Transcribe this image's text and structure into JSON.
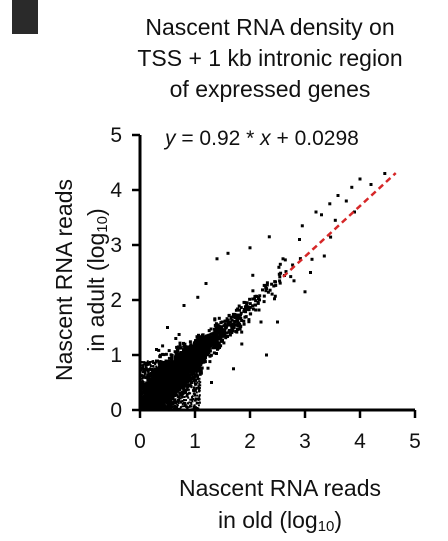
{
  "chart_data": {
    "type": "scatter",
    "title_lines": [
      "Nascent RNA density on",
      "TSS + 1 kb intronic region",
      "of expressed genes"
    ],
    "xlabel": {
      "line1": "Nascent RNA reads",
      "line2_prefix": "in old (log",
      "sub": "10",
      "suffix": ")"
    },
    "ylabel": {
      "line1": "Nascent RNA reads",
      "line2_prefix": "in adult (log",
      "sub": "10",
      "suffix": ")"
    },
    "xlim": [
      0,
      5
    ],
    "ylim": [
      0,
      5
    ],
    "x_ticks": [
      "0",
      "1",
      "2",
      "3",
      "4",
      "5"
    ],
    "y_ticks": [
      "0",
      "1",
      "2",
      "3",
      "4",
      "5"
    ],
    "fit": {
      "slope": 0.92,
      "intercept": 0.0298,
      "x_range": [
        2.6,
        4.65
      ],
      "color": "#d62728",
      "style": "dashed"
    },
    "fit_label": {
      "y": "y",
      "eq": " = 0.92 * ",
      "x": "x",
      "rest": " + 0.0298"
    },
    "point_color": "#000000",
    "outlier_points": [
      [
        3.3,
        3.55
      ],
      [
        3.45,
        3.75
      ],
      [
        3.6,
        3.9
      ],
      [
        3.75,
        3.8
      ],
      [
        3.85,
        4.05
      ],
      [
        4.0,
        4.2
      ],
      [
        3.55,
        3.45
      ],
      [
        3.2,
        3.6
      ],
      [
        2.95,
        3.35
      ],
      [
        3.1,
        2.5
      ],
      [
        2.2,
        1.6
      ],
      [
        2.5,
        1.6
      ],
      [
        0.5,
        1.5
      ],
      [
        0.8,
        1.9
      ],
      [
        1.2,
        2.3
      ],
      [
        1.4,
        2.75
      ],
      [
        1.6,
        2.85
      ],
      [
        2.0,
        2.95
      ],
      [
        2.35,
        3.15
      ],
      [
        2.6,
        2.75
      ],
      [
        2.8,
        2.35
      ],
      [
        3.35,
        2.8
      ],
      [
        3.0,
        2.15
      ],
      [
        1.85,
        1.2
      ],
      [
        2.3,
        1.0
      ],
      [
        1.7,
        0.75
      ],
      [
        2.55,
        2.65
      ],
      [
        4.2,
        4.1
      ],
      [
        4.45,
        4.3
      ],
      [
        3.9,
        3.6
      ],
      [
        1.05,
        2.05
      ],
      [
        0.65,
        1.3
      ],
      [
        0.3,
        1.1
      ],
      [
        1.3,
        0.5
      ],
      [
        2.05,
        2.45
      ],
      [
        2.9,
        3.1
      ]
    ]
  }
}
